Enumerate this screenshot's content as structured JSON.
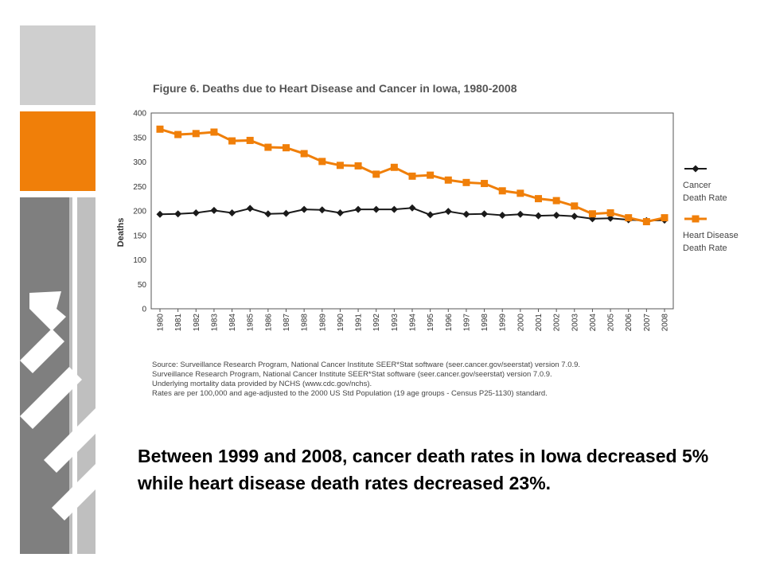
{
  "slide": {
    "caption": "Between 1999 and 2008, cancer death rates in Iowa decreased 5% while heart disease death rates decreased 23%.",
    "source_lines": [
      "Source: Surveillance Research Program, National Cancer Institute SEER*Stat software (seer.cancer.gov/seerstat) version 7.0.9.",
      "Surveillance Research Program, National Cancer Institute SEER*Stat software (seer.cancer.gov/seerstat) version 7.0.9.",
      "Underlying mortality data provided by NCHS (www.cdc.gov/nchs).",
      "Rates are per 100,000 and age-adjusted to the 2000 US Std Population (19 age groups - Census P25-1130) standard."
    ],
    "colors": {
      "accent_orange": "#f07f09",
      "deco_gray": "#cfcfcf",
      "deco_dark": "#7f7f7f"
    }
  },
  "chart_data": {
    "type": "line",
    "title": "Figure 6. Deaths due to Heart Disease and Cancer in Iowa, 1980-2008",
    "xlabel": "",
    "ylabel": "Deaths",
    "ylim": [
      0,
      400
    ],
    "yticks": [
      0,
      50,
      100,
      150,
      200,
      250,
      300,
      350,
      400
    ],
    "grid": false,
    "legend_position": "right",
    "categories": [
      "1980",
      "1981",
      "1982",
      "1983",
      "1984",
      "1985",
      "1986",
      "1987",
      "1988",
      "1989",
      "1990",
      "1991",
      "1992",
      "1993",
      "1994",
      "1995",
      "1996",
      "1997",
      "1998",
      "1999",
      "2000",
      "2001",
      "2002",
      "2003",
      "2004",
      "2005",
      "2006",
      "2007",
      "2008"
    ],
    "series": [
      {
        "name": "Cancer Death Rate",
        "color": "#1a1a1a",
        "marker": "diamond",
        "values": [
          193,
          194,
          196,
          201,
          196,
          205,
          194,
          195,
          203,
          202,
          196,
          203,
          203,
          203,
          206,
          192,
          199,
          193,
          194,
          191,
          193,
          190,
          191,
          189,
          184,
          185,
          182,
          180,
          181
        ]
      },
      {
        "name": "Heart Disease Death Rate",
        "color": "#f07f09",
        "marker": "square",
        "values": [
          367,
          356,
          358,
          361,
          343,
          344,
          330,
          329,
          317,
          301,
          293,
          292,
          275,
          289,
          271,
          273,
          263,
          258,
          256,
          241,
          236,
          225,
          221,
          210,
          194,
          196,
          186,
          178,
          186
        ]
      }
    ]
  }
}
